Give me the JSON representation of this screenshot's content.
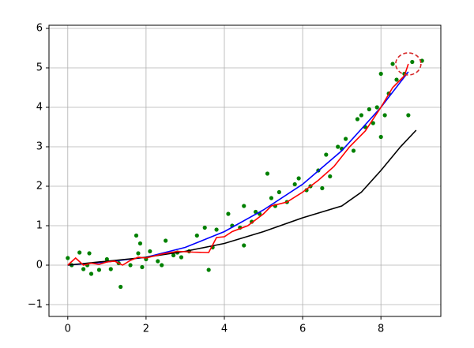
{
  "chart_data": {
    "type": "line",
    "grid": true,
    "xlim": [
      -0.48,
      9.53
    ],
    "ylim": [
      -1.3,
      6.08
    ],
    "xticks": [
      0,
      2,
      4,
      6,
      8
    ],
    "yticks": [
      {
        "value": -1,
        "label": "−1"
      },
      0,
      1,
      2,
      3,
      4,
      5,
      6
    ],
    "series": [
      {
        "type": "scatter",
        "color": "#008000",
        "x": [
          0,
          0.1,
          0.3,
          0.4,
          0.5,
          0.55,
          0.6,
          0.8,
          1.0,
          1.1,
          1.3,
          1.35,
          1.6,
          1.75,
          1.8,
          1.85,
          1.9,
          2.0,
          2.1,
          2.3,
          2.4,
          2.5,
          2.7,
          2.8,
          2.9,
          3.1,
          3.3,
          3.5,
          3.6,
          3.7,
          3.8,
          4.1,
          4.2,
          4.4,
          4.5,
          4.5,
          4.7,
          4.8,
          4.9,
          5.1,
          5.2,
          5.3,
          5.4,
          5.6,
          5.8,
          5.9,
          6.1,
          6.2,
          6.4,
          6.5,
          6.6,
          6.7,
          6.9,
          7.0,
          7.1,
          7.3,
          7.4,
          7.5,
          7.6,
          7.7,
          7.8,
          7.9,
          8.0,
          8.0,
          8.1,
          8.2,
          8.3,
          8.4,
          8.6,
          8.7,
          8.8,
          9.05
        ],
        "values": [
          0.18,
          0.0,
          0.32,
          -0.1,
          0.0,
          0.3,
          -0.22,
          -0.12,
          0.15,
          -0.1,
          0.05,
          -0.55,
          0.0,
          0.75,
          0.3,
          0.55,
          -0.05,
          0.15,
          0.35,
          0.1,
          0.0,
          0.62,
          0.25,
          0.32,
          0.2,
          0.35,
          0.75,
          0.95,
          -0.12,
          0.45,
          0.9,
          1.3,
          1.0,
          0.95,
          1.5,
          0.5,
          1.1,
          1.35,
          1.3,
          2.32,
          1.7,
          1.5,
          1.85,
          1.6,
          2.05,
          2.2,
          1.9,
          2.0,
          2.4,
          1.95,
          2.8,
          2.25,
          3.0,
          2.95,
          3.2,
          2.9,
          3.7,
          3.8,
          3.5,
          3.95,
          3.6,
          4.0,
          4.85,
          3.25,
          3.8,
          4.35,
          5.1,
          4.7,
          4.85,
          3.8,
          5.15,
          5.18
        ]
      },
      {
        "type": "line",
        "color": "#0000ff",
        "x": [
          0,
          1,
          2,
          3,
          4,
          5,
          6,
          7,
          8,
          8.7
        ],
        "values": [
          0,
          0.08,
          0.2,
          0.45,
          0.85,
          1.4,
          2.05,
          2.9,
          4.0,
          4.9
        ]
      },
      {
        "type": "line",
        "color": "#000000",
        "x": [
          0,
          1,
          2,
          3,
          4,
          5,
          6,
          7,
          7.5,
          8,
          8.5,
          8.9
        ],
        "values": [
          0,
          0.1,
          0.2,
          0.35,
          0.55,
          0.85,
          1.2,
          1.5,
          1.85,
          2.4,
          3.0,
          3.42
        ]
      },
      {
        "type": "line",
        "color": "#ff0000",
        "x": [
          0,
          0.2,
          0.4,
          0.6,
          0.8,
          1.0,
          1.2,
          1.4,
          1.6,
          1.8,
          2.0,
          2.4,
          2.8,
          3.2,
          3.6,
          3.8,
          4.0,
          4.2,
          4.6,
          5.0,
          5.2,
          5.6,
          6.0,
          6.4,
          6.8,
          7.2,
          7.6,
          8.0,
          8.3,
          8.6,
          8.7
        ],
        "values": [
          0,
          0.18,
          0.0,
          0.05,
          0.02,
          0.08,
          0.1,
          0.0,
          0.12,
          0.2,
          0.18,
          0.28,
          0.35,
          0.33,
          0.32,
          0.7,
          0.72,
          0.85,
          1.0,
          1.3,
          1.5,
          1.6,
          1.85,
          2.15,
          2.5,
          3.0,
          3.4,
          4.0,
          4.5,
          4.8,
          5.1
        ]
      }
    ],
    "highlight": {
      "x": 8.7,
      "y": 5.1,
      "color": "#d62728"
    }
  }
}
